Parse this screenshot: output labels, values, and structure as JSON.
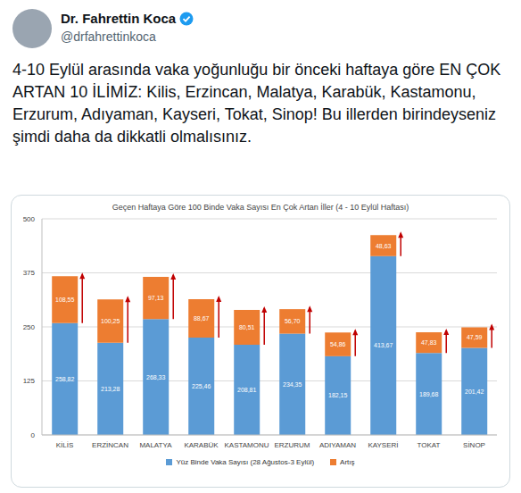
{
  "tweet": {
    "name": "Dr. Fahrettin Koca",
    "handle": "@drfahrettinkoca",
    "text": "4-10 Eylül arasında vaka yoğunluğu bir önceki haftaya göre EN ÇOK ARTAN 10 İLİMİZ: Kilis, Erzincan, Malatya, Karabük, Kastamonu, Erzurum, Adıyaman, Kayseri, Tokat, Sinop! Bu illerden birindeyseniz şimdi daha da dikkatli olmalısınız."
  },
  "chart_data": {
    "type": "bar",
    "title": "Geçen Haftaya Göre 100 Binde Vaka Sayısı En Çok Artan İller (4 - 10 Eylül Haftası)",
    "categories": [
      "KİLİS",
      "ERZİNCAN",
      "MALATYA",
      "KARABÜK",
      "KASTAMONU",
      "ERZURUM",
      "ADIYAMAN",
      "KAYSERİ",
      "TOKAT",
      "SİNOP"
    ],
    "series": [
      {
        "name": "Yüz Binde Vaka Sayısı (28 Ağustos-3 Eylül)",
        "color": "#5b9bd5",
        "values": [
          258.82,
          213.28,
          268.33,
          225.46,
          208.81,
          234.35,
          182.15,
          413.67,
          189.68,
          201.42
        ],
        "value_labels": [
          "258,82",
          "213,28",
          "268,33",
          "225,46",
          "208,81",
          "234,35",
          "182,15",
          "413,67",
          "189,68",
          "201,42"
        ]
      },
      {
        "name": "Artış",
        "color": "#ed7d31",
        "values": [
          108.55,
          100.25,
          97.13,
          88.67,
          80.51,
          56.7,
          54.86,
          48.63,
          47.83,
          47.59
        ],
        "value_labels": [
          "108,55",
          "100,25",
          "97,13",
          "88,67",
          "80,51",
          "56,70",
          "54,86",
          "48,63",
          "47,83",
          "47,59"
        ]
      }
    ],
    "ylim": [
      0,
      500
    ],
    "yticks": [
      0,
      125,
      250,
      375,
      500
    ],
    "grid": true,
    "stacked": true,
    "data_labels": true,
    "legend": "bottom"
  }
}
